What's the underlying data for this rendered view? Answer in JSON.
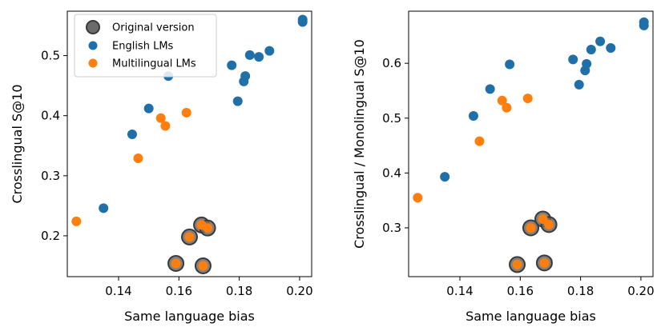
{
  "colors": {
    "english": "#1f6fa8",
    "multilingual": "#ff7f0e",
    "original": "#6b6b6b",
    "original_edge": "#3a3a3a"
  },
  "legend": {
    "original": "Original version",
    "english": "English LMs",
    "multilingual": "Multilingual LMs"
  },
  "chart_data": [
    {
      "type": "scatter",
      "title": "",
      "xlabel": "Same language bias",
      "ylabel": "Crosslingual S@10",
      "xlim": [
        0.123,
        0.204
      ],
      "ylim": [
        0.132,
        0.574
      ],
      "xticks": [
        0.14,
        0.16,
        0.18,
        0.2
      ],
      "xtick_labels": [
        "0.14",
        "0.16",
        "0.18",
        "0.20"
      ],
      "yticks": [
        0.2,
        0.3,
        0.4,
        0.5
      ],
      "ytick_labels": [
        "0.2",
        "0.3",
        "0.4",
        "0.5"
      ],
      "legend_position": "top-left",
      "series": [
        {
          "name": "English LMs",
          "key": "english",
          "points": [
            [
              0.135,
              0.246
            ],
            [
              0.1445,
              0.369
            ],
            [
              0.15,
              0.412
            ],
            [
              0.1565,
              0.466
            ],
            [
              0.1775,
              0.484
            ],
            [
              0.1795,
              0.424
            ],
            [
              0.1815,
              0.457
            ],
            [
              0.182,
              0.466
            ],
            [
              0.1835,
              0.501
            ],
            [
              0.1865,
              0.498
            ],
            [
              0.19,
              0.508
            ],
            [
              0.201,
              0.556
            ],
            [
              0.201,
              0.56
            ]
          ]
        },
        {
          "name": "Multilingual LMs",
          "key": "multilingual",
          "points": [
            [
              0.126,
              0.224
            ],
            [
              0.1465,
              0.329
            ],
            [
              0.154,
              0.396
            ],
            [
              0.1555,
              0.383
            ],
            [
              0.1625,
              0.405
            ],
            [
              0.159,
              0.154
            ],
            [
              0.1635,
              0.198
            ],
            [
              0.1675,
              0.218
            ],
            [
              0.168,
              0.15
            ],
            [
              0.1695,
              0.213
            ]
          ]
        },
        {
          "name": "Original version",
          "key": "original",
          "points": [
            [
              0.159,
              0.154
            ],
            [
              0.1635,
              0.198
            ],
            [
              0.1675,
              0.218
            ],
            [
              0.168,
              0.15
            ],
            [
              0.1695,
              0.213
            ]
          ]
        }
      ]
    },
    {
      "type": "scatter",
      "title": "",
      "xlabel": "Same language bias",
      "ylabel": "Crosslingual / Monolingual S@10",
      "xlim": [
        0.123,
        0.204
      ],
      "ylim": [
        0.211,
        0.695
      ],
      "xticks": [
        0.14,
        0.16,
        0.18,
        0.2
      ],
      "xtick_labels": [
        "0.14",
        "0.16",
        "0.18",
        "0.20"
      ],
      "yticks": [
        0.3,
        0.4,
        0.5,
        0.6
      ],
      "ytick_labels": [
        "0.3",
        "0.4",
        "0.5",
        "0.6"
      ],
      "series": [
        {
          "name": "English LMs",
          "key": "english",
          "points": [
            [
              0.135,
              0.393
            ],
            [
              0.1445,
              0.504
            ],
            [
              0.15,
              0.553
            ],
            [
              0.1565,
              0.598
            ],
            [
              0.1775,
              0.607
            ],
            [
              0.1795,
              0.561
            ],
            [
              0.1815,
              0.587
            ],
            [
              0.182,
              0.599
            ],
            [
              0.1835,
              0.625
            ],
            [
              0.1865,
              0.64
            ],
            [
              0.19,
              0.628
            ],
            [
              0.201,
              0.669
            ],
            [
              0.201,
              0.675
            ]
          ]
        },
        {
          "name": "Multilingual LMs",
          "key": "multilingual",
          "points": [
            [
              0.126,
              0.355
            ],
            [
              0.1465,
              0.458
            ],
            [
              0.154,
              0.532
            ],
            [
              0.1555,
              0.519
            ],
            [
              0.1625,
              0.536
            ],
            [
              0.159,
              0.233
            ],
            [
              0.1635,
              0.3
            ],
            [
              0.1675,
              0.316
            ],
            [
              0.168,
              0.236
            ],
            [
              0.1695,
              0.306
            ]
          ]
        },
        {
          "name": "Original version",
          "key": "original",
          "points": [
            [
              0.159,
              0.233
            ],
            [
              0.1635,
              0.3
            ],
            [
              0.1675,
              0.316
            ],
            [
              0.168,
              0.236
            ],
            [
              0.1695,
              0.306
            ]
          ]
        }
      ]
    }
  ]
}
